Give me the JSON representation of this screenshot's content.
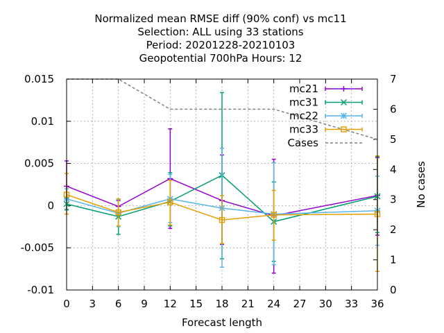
{
  "chart_data": {
    "type": "line",
    "title_lines": [
      "Normalized mean RMSE diff (90% conf) vs mc11",
      "Selection: ALL using    33 stations",
      "Period: 20201228-20210103",
      "Geopotential 700hPa   Hours:  12"
    ],
    "xlabel": "Forecast length",
    "ylabel": "",
    "y2label": "No cases",
    "xlim": [
      0,
      36
    ],
    "ylim": [
      -0.01,
      0.015
    ],
    "y2lim": [
      0,
      7
    ],
    "xticks": [
      0,
      3,
      6,
      9,
      12,
      15,
      18,
      21,
      24,
      27,
      30,
      33,
      36
    ],
    "yticks": [
      "-0.01",
      "-0.005",
      "0",
      "0.005",
      "0.01",
      "0.015"
    ],
    "y2ticks": [
      0,
      1,
      2,
      3,
      4,
      5,
      6,
      7
    ],
    "grid": true,
    "legend_position": "top-right",
    "series": [
      {
        "name": "mc21",
        "color": "#9400d3",
        "marker": "plus",
        "x": [
          0,
          6,
          12,
          18,
          24,
          36
        ],
        "y": [
          0.0023,
          -0.0001,
          0.0032,
          0.0006,
          -0.0012,
          0.0012
        ],
        "err_low": [
          -0.0005,
          -0.0008,
          -0.0027,
          -0.0046,
          -0.008,
          -0.0035
        ],
        "err_high": [
          0.0053,
          0.0006,
          0.0091,
          0.006,
          0.0055,
          0.0057
        ]
      },
      {
        "name": "mc31",
        "color": "#009e73",
        "marker": "cross",
        "x": [
          0,
          6,
          12,
          18,
          24,
          36
        ],
        "y": [
          0.0002,
          -0.0013,
          0.0005,
          0.0036,
          -0.0019,
          0.0011
        ],
        "err_low": [
          -0.0005,
          -0.0034,
          -0.0024,
          -0.0063,
          -0.0066,
          -0.0032
        ],
        "err_high": [
          0.0009,
          0.0008,
          0.0039,
          0.0134,
          0.0028,
          0.0058
        ]
      },
      {
        "name": "mc22",
        "color": "#56b4e9",
        "marker": "star",
        "x": [
          0,
          6,
          12,
          18,
          24,
          36
        ],
        "y": [
          0.0008,
          -0.0009,
          0.0008,
          -0.0003,
          -0.001,
          -0.0006
        ],
        "err_low": [
          -0.0004,
          -0.0025,
          -0.002,
          -0.0073,
          -0.007,
          -0.0047
        ],
        "err_high": [
          0.002,
          0.0007,
          0.0037,
          0.0068,
          0.0051,
          0.0035
        ]
      },
      {
        "name": "mc33",
        "color": "#e69f00",
        "marker": "square",
        "x": [
          0,
          6,
          12,
          18,
          24,
          36
        ],
        "y": [
          0.0013,
          -0.0008,
          0.0004,
          -0.0017,
          -0.0011,
          -0.001
        ],
        "err_low": [
          -0.001,
          -0.0024,
          -0.0023,
          -0.0045,
          -0.0041,
          -0.0078
        ],
        "err_high": [
          0.0038,
          0.0008,
          0.003,
          0.0012,
          0.0018,
          0.0059
        ]
      },
      {
        "name": "Cases",
        "color": "#808080",
        "axis": "y2",
        "style": "dashed",
        "x": [
          0,
          6,
          12,
          18,
          24,
          36
        ],
        "y": [
          7,
          7,
          6,
          6,
          6,
          5
        ]
      }
    ]
  }
}
